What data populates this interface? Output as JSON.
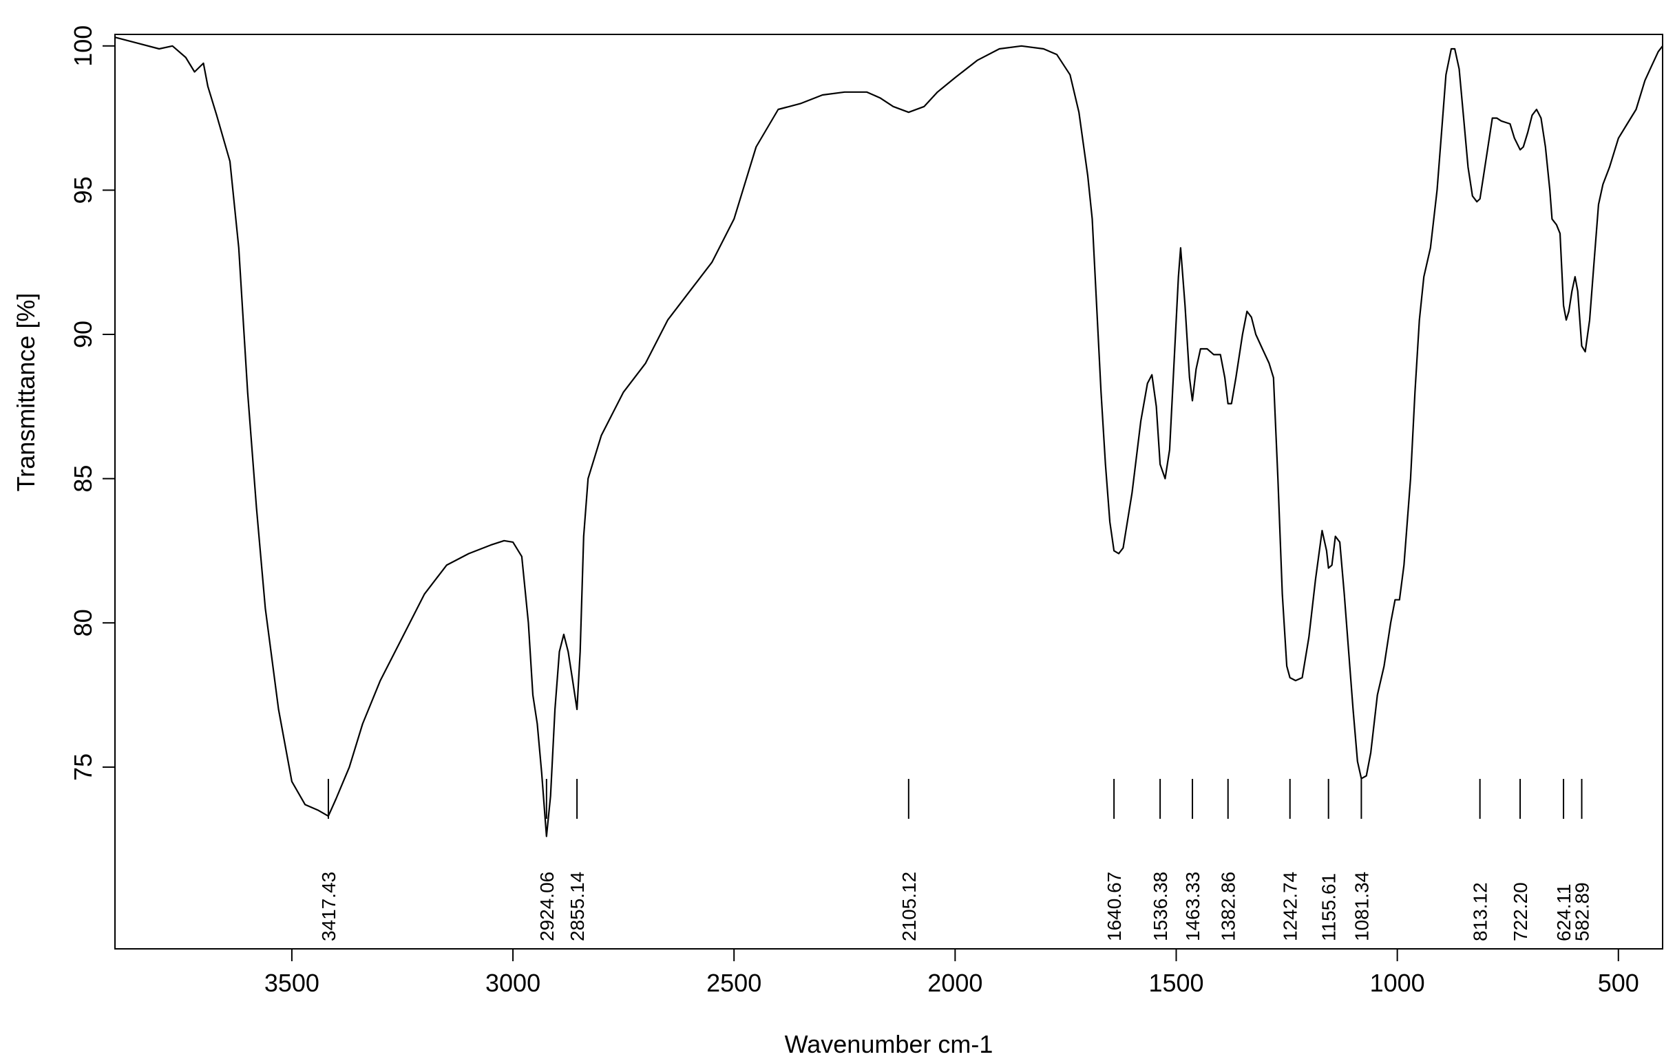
{
  "chart_data": {
    "type": "line",
    "title": "",
    "xlabel": "Wavenumber cm-1",
    "ylabel": "Transmittance [%]",
    "xlim": [
      3900,
      400
    ],
    "ylim": [
      68.7,
      100.4
    ],
    "x_ticks": [
      3500,
      3000,
      2500,
      2000,
      1500,
      1000,
      500
    ],
    "y_ticks": [
      75,
      80,
      85,
      90,
      95,
      100
    ],
    "grid": false,
    "line_color": "#000000",
    "series": [
      {
        "name": "",
        "points": [
          [
            3900,
            100.3
          ],
          [
            3850,
            100.1
          ],
          [
            3800,
            99.9
          ],
          [
            3770,
            100.0
          ],
          [
            3740,
            99.6
          ],
          [
            3720,
            99.1
          ],
          [
            3700,
            99.4
          ],
          [
            3690,
            98.6
          ],
          [
            3670,
            97.6
          ],
          [
            3640,
            96.0
          ],
          [
            3620,
            93.0
          ],
          [
            3600,
            88.0
          ],
          [
            3580,
            84.0
          ],
          [
            3560,
            80.5
          ],
          [
            3530,
            77.0
          ],
          [
            3500,
            74.5
          ],
          [
            3470,
            73.7
          ],
          [
            3440,
            73.5
          ],
          [
            3417.43,
            73.3
          ],
          [
            3400,
            73.9
          ],
          [
            3370,
            75.0
          ],
          [
            3340,
            76.5
          ],
          [
            3300,
            78.0
          ],
          [
            3250,
            79.5
          ],
          [
            3200,
            81.0
          ],
          [
            3150,
            82.0
          ],
          [
            3100,
            82.4
          ],
          [
            3050,
            82.7
          ],
          [
            3020,
            82.85
          ],
          [
            3000,
            82.8
          ],
          [
            2980,
            82.3
          ],
          [
            2965,
            80.0
          ],
          [
            2955,
            77.5
          ],
          [
            2945,
            76.5
          ],
          [
            2935,
            74.8
          ],
          [
            2924.06,
            72.6
          ],
          [
            2915,
            74.0
          ],
          [
            2905,
            77.0
          ],
          [
            2895,
            79.0
          ],
          [
            2885,
            79.6
          ],
          [
            2875,
            79.0
          ],
          [
            2865,
            78.0
          ],
          [
            2855.14,
            77.0
          ],
          [
            2848,
            79.0
          ],
          [
            2840,
            83.0
          ],
          [
            2830,
            85.0
          ],
          [
            2800,
            86.5
          ],
          [
            2750,
            88.0
          ],
          [
            2700,
            89.0
          ],
          [
            2650,
            90.5
          ],
          [
            2600,
            91.5
          ],
          [
            2550,
            92.5
          ],
          [
            2500,
            94.0
          ],
          [
            2450,
            96.5
          ],
          [
            2400,
            97.8
          ],
          [
            2350,
            98.0
          ],
          [
            2300,
            98.3
          ],
          [
            2250,
            98.4
          ],
          [
            2200,
            98.4
          ],
          [
            2170,
            98.2
          ],
          [
            2140,
            97.9
          ],
          [
            2105.12,
            97.7
          ],
          [
            2070,
            97.9
          ],
          [
            2040,
            98.4
          ],
          [
            2000,
            98.9
          ],
          [
            1950,
            99.5
          ],
          [
            1900,
            99.9
          ],
          [
            1850,
            100.0
          ],
          [
            1800,
            99.9
          ],
          [
            1770,
            99.7
          ],
          [
            1740,
            99.0
          ],
          [
            1720,
            97.7
          ],
          [
            1700,
            95.5
          ],
          [
            1690,
            94.0
          ],
          [
            1680,
            91.0
          ],
          [
            1670,
            88.0
          ],
          [
            1660,
            85.5
          ],
          [
            1650,
            83.5
          ],
          [
            1640.67,
            82.5
          ],
          [
            1630,
            82.4
          ],
          [
            1620,
            82.6
          ],
          [
            1600,
            84.5
          ],
          [
            1580,
            87.0
          ],
          [
            1565,
            88.3
          ],
          [
            1555,
            88.6
          ],
          [
            1545,
            87.5
          ],
          [
            1536.38,
            85.5
          ],
          [
            1525,
            85.0
          ],
          [
            1515,
            86.0
          ],
          [
            1505,
            89.0
          ],
          [
            1495,
            92.0
          ],
          [
            1490,
            93.0
          ],
          [
            1480,
            91.0
          ],
          [
            1470,
            88.5
          ],
          [
            1463.33,
            87.7
          ],
          [
            1455,
            88.8
          ],
          [
            1445,
            89.5
          ],
          [
            1430,
            89.5
          ],
          [
            1415,
            89.3
          ],
          [
            1400,
            89.3
          ],
          [
            1390,
            88.5
          ],
          [
            1382.86,
            87.6
          ],
          [
            1375,
            87.6
          ],
          [
            1365,
            88.5
          ],
          [
            1350,
            90.0
          ],
          [
            1340,
            90.8
          ],
          [
            1330,
            90.6
          ],
          [
            1320,
            90.0
          ],
          [
            1305,
            89.5
          ],
          [
            1290,
            89.0
          ],
          [
            1280,
            88.5
          ],
          [
            1270,
            85.0
          ],
          [
            1260,
            81.0
          ],
          [
            1250,
            78.5
          ],
          [
            1242.74,
            78.1
          ],
          [
            1230,
            78.0
          ],
          [
            1215,
            78.1
          ],
          [
            1200,
            79.5
          ],
          [
            1185,
            81.5
          ],
          [
            1170,
            83.2
          ],
          [
            1160,
            82.5
          ],
          [
            1155.61,
            81.9
          ],
          [
            1148,
            82.0
          ],
          [
            1140,
            83.0
          ],
          [
            1130,
            82.8
          ],
          [
            1120,
            81.0
          ],
          [
            1110,
            79.0
          ],
          [
            1100,
            77.0
          ],
          [
            1090,
            75.2
          ],
          [
            1081.34,
            74.6
          ],
          [
            1070,
            74.7
          ],
          [
            1060,
            75.5
          ],
          [
            1045,
            77.5
          ],
          [
            1030,
            78.5
          ],
          [
            1015,
            80.0
          ],
          [
            1005,
            80.8
          ],
          [
            995,
            80.8
          ],
          [
            985,
            82.0
          ],
          [
            970,
            85.0
          ],
          [
            960,
            88.0
          ],
          [
            950,
            90.5
          ],
          [
            940,
            92.0
          ],
          [
            925,
            93.0
          ],
          [
            910,
            95.0
          ],
          [
            900,
            97.0
          ],
          [
            890,
            99.0
          ],
          [
            878,
            99.9
          ],
          [
            870,
            99.9
          ],
          [
            860,
            99.2
          ],
          [
            850,
            97.5
          ],
          [
            840,
            95.8
          ],
          [
            830,
            94.8
          ],
          [
            820,
            94.6
          ],
          [
            813.12,
            94.7
          ],
          [
            805,
            95.5
          ],
          [
            795,
            96.5
          ],
          [
            785,
            97.5
          ],
          [
            775,
            97.5
          ],
          [
            765,
            97.4
          ],
          [
            745,
            97.3
          ],
          [
            735,
            96.8
          ],
          [
            722.2,
            96.4
          ],
          [
            715,
            96.5
          ],
          [
            705,
            97.0
          ],
          [
            695,
            97.6
          ],
          [
            685,
            97.8
          ],
          [
            675,
            97.5
          ],
          [
            665,
            96.5
          ],
          [
            655,
            95.0
          ],
          [
            650,
            94.0
          ],
          [
            640,
            93.8
          ],
          [
            632,
            93.5
          ],
          [
            624.11,
            91.0
          ],
          [
            618,
            90.5
          ],
          [
            612,
            90.8
          ],
          [
            605,
            91.5
          ],
          [
            598,
            92.0
          ],
          [
            592,
            91.5
          ],
          [
            582.89,
            89.6
          ],
          [
            575,
            89.4
          ],
          [
            565,
            90.5
          ],
          [
            555,
            92.5
          ],
          [
            545,
            94.5
          ],
          [
            535,
            95.2
          ],
          [
            520,
            95.8
          ],
          [
            500,
            96.8
          ],
          [
            480,
            97.3
          ],
          [
            460,
            97.8
          ],
          [
            440,
            98.8
          ],
          [
            425,
            99.3
          ],
          [
            410,
            99.8
          ],
          [
            400,
            100.0
          ]
        ]
      }
    ],
    "peaks": [
      {
        "x": 3417.43,
        "label": "3417.43"
      },
      {
        "x": 2924.06,
        "label": "2924.06"
      },
      {
        "x": 2855.14,
        "label": "2855.14"
      },
      {
        "x": 2105.12,
        "label": "2105.12"
      },
      {
        "x": 1640.67,
        "label": "1640.67"
      },
      {
        "x": 1536.38,
        "label": "1536.38"
      },
      {
        "x": 1463.33,
        "label": "1463.33"
      },
      {
        "x": 1382.86,
        "label": "1382.86"
      },
      {
        "x": 1242.74,
        "label": "1242.74"
      },
      {
        "x": 1155.61,
        "label": "1155.61"
      },
      {
        "x": 1081.34,
        "label": "1081.34"
      },
      {
        "x": 813.12,
        "label": "813.12"
      },
      {
        "x": 722.2,
        "label": "722.20"
      },
      {
        "x": 624.11,
        "label": "624.11"
      },
      {
        "x": 582.89,
        "label": "582.89"
      }
    ]
  }
}
